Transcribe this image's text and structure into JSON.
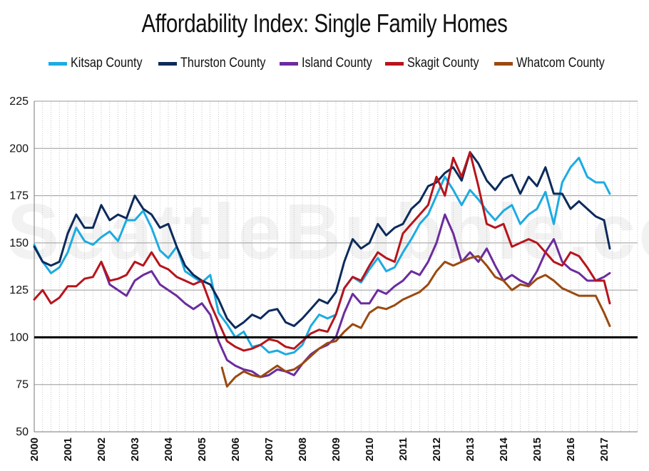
{
  "watermark": "SeattleBubble.com",
  "chart_data": {
    "type": "line",
    "title": "Affordability Index: Single Family Homes",
    "xlabel": "",
    "ylabel": "",
    "ylim": [
      50,
      225
    ],
    "xlim": [
      2000,
      2018
    ],
    "yticks": [
      50,
      75,
      100,
      125,
      150,
      175,
      200,
      225
    ],
    "xticks": [
      "2000",
      "2001",
      "2002",
      "2003",
      "2004",
      "2005",
      "2006",
      "2007",
      "2008",
      "2009",
      "2010",
      "2011",
      "2012",
      "2013",
      "2014",
      "2015",
      "2016",
      "2017"
    ],
    "reference_line": 100,
    "grid": true,
    "legend": "top",
    "series": [
      {
        "name": "Kitsap County",
        "color": "#1cabe2",
        "x": [
          2000,
          2000.25,
          2000.5,
          2000.75,
          2001,
          2001.25,
          2001.5,
          2001.75,
          2002,
          2002.25,
          2002.5,
          2002.75,
          2003,
          2003.25,
          2003.5,
          2003.75,
          2004,
          2004.25,
          2004.5,
          2004.75,
          2005,
          2005.25,
          2005.5,
          2005.75,
          2006,
          2006.25,
          2006.5,
          2006.75,
          2007,
          2007.25,
          2007.5,
          2007.75,
          2008,
          2008.25,
          2008.5,
          2008.75,
          2009,
          2009.25,
          2009.5,
          2009.75,
          2010,
          2010.25,
          2010.5,
          2010.75,
          2011,
          2011.25,
          2011.5,
          2011.75,
          2012,
          2012.25,
          2012.5,
          2012.75,
          2013,
          2013.25,
          2013.5,
          2013.75,
          2014,
          2014.25,
          2014.5,
          2014.75,
          2015,
          2015.25,
          2015.5,
          2015.75,
          2016,
          2016.25,
          2016.5,
          2016.75,
          2017,
          2017.17
        ],
        "y": [
          149,
          140,
          134,
          137,
          145,
          158,
          151,
          149,
          153,
          156,
          151,
          162,
          162,
          167,
          158,
          146,
          142,
          148,
          135,
          132,
          129,
          133,
          113,
          107,
          100,
          103,
          95,
          96,
          92,
          93,
          91,
          92,
          96,
          106,
          112,
          110,
          112,
          126,
          132,
          129,
          136,
          142,
          135,
          137,
          145,
          152,
          160,
          165,
          175,
          185,
          178,
          170,
          178,
          173,
          167,
          162,
          167,
          170,
          160,
          165,
          168,
          177,
          160,
          182,
          190,
          195,
          185,
          182,
          182,
          176
        ]
      },
      {
        "name": "Thurston County",
        "color": "#0c2a5b",
        "x": [
          2000,
          2000.25,
          2000.5,
          2000.75,
          2001,
          2001.25,
          2001.5,
          2001.75,
          2002,
          2002.25,
          2002.5,
          2002.75,
          2003,
          2003.25,
          2003.5,
          2003.75,
          2004,
          2004.25,
          2004.5,
          2004.75,
          2005,
          2005.25,
          2005.5,
          2005.75,
          2006,
          2006.25,
          2006.5,
          2006.75,
          2007,
          2007.25,
          2007.5,
          2007.75,
          2008,
          2008.25,
          2008.5,
          2008.75,
          2009,
          2009.25,
          2009.5,
          2009.75,
          2010,
          2010.25,
          2010.5,
          2010.75,
          2011,
          2011.25,
          2011.5,
          2011.75,
          2012,
          2012.25,
          2012.5,
          2012.75,
          2013,
          2013.25,
          2013.5,
          2013.75,
          2014,
          2014.25,
          2014.5,
          2014.75,
          2015,
          2015.25,
          2015.5,
          2015.75,
          2016,
          2016.25,
          2016.5,
          2016.75,
          2017,
          2017.17
        ],
        "y": [
          148,
          140,
          138,
          140,
          155,
          165,
          158,
          158,
          170,
          162,
          165,
          163,
          175,
          168,
          165,
          158,
          160,
          148,
          138,
          133,
          130,
          128,
          120,
          110,
          105,
          108,
          112,
          110,
          114,
          115,
          108,
          106,
          110,
          115,
          120,
          118,
          124,
          140,
          152,
          147,
          150,
          160,
          154,
          158,
          160,
          168,
          172,
          180,
          182,
          187,
          190,
          183,
          198,
          192,
          183,
          178,
          184,
          186,
          176,
          185,
          180,
          190,
          176,
          176,
          168,
          172,
          168,
          164,
          162,
          147
        ]
      },
      {
        "name": "Island County",
        "color": "#6b2c9e",
        "x": [
          2002,
          2002.25,
          2002.5,
          2002.75,
          2003,
          2003.25,
          2003.5,
          2003.75,
          2004,
          2004.25,
          2004.5,
          2004.75,
          2005,
          2005.25,
          2005.5,
          2005.75,
          2006,
          2006.25,
          2006.5,
          2006.75,
          2007,
          2007.25,
          2007.5,
          2007.75,
          2008,
          2008.25,
          2008.5,
          2008.75,
          2009,
          2009.25,
          2009.5,
          2009.75,
          2010,
          2010.25,
          2010.5,
          2010.75,
          2011,
          2011.25,
          2011.5,
          2011.75,
          2012,
          2012.25,
          2012.5,
          2012.75,
          2013,
          2013.25,
          2013.5,
          2013.75,
          2014,
          2014.25,
          2014.5,
          2014.75,
          2015,
          2015.25,
          2015.5,
          2015.75,
          2016,
          2016.25,
          2016.5,
          2016.75,
          2017,
          2017.17
        ],
        "y": [
          140,
          128,
          125,
          122,
          130,
          133,
          135,
          128,
          125,
          122,
          118,
          115,
          118,
          112,
          98,
          88,
          85,
          83,
          82,
          79,
          80,
          83,
          82,
          80,
          86,
          91,
          94,
          96,
          100,
          113,
          123,
          118,
          118,
          125,
          123,
          127,
          130,
          135,
          133,
          140,
          150,
          165,
          155,
          140,
          145,
          140,
          147,
          138,
          130,
          133,
          130,
          128,
          135,
          145,
          152,
          140,
          136,
          134,
          130,
          130,
          132,
          134
        ]
      },
      {
        "name": "Skagit County",
        "color": "#b7141c",
        "x": [
          2000,
          2000.25,
          2000.5,
          2000.75,
          2001,
          2001.25,
          2001.5,
          2001.75,
          2002,
          2002.25,
          2002.5,
          2002.75,
          2003,
          2003.25,
          2003.5,
          2003.75,
          2004,
          2004.25,
          2004.5,
          2004.75,
          2005,
          2005.25,
          2005.5,
          2005.75,
          2006,
          2006.25,
          2006.5,
          2006.75,
          2007,
          2007.25,
          2007.5,
          2007.75,
          2008,
          2008.25,
          2008.5,
          2008.75,
          2009,
          2009.25,
          2009.5,
          2009.75,
          2010,
          2010.25,
          2010.5,
          2010.75,
          2011,
          2011.25,
          2011.5,
          2011.75,
          2012,
          2012.25,
          2012.5,
          2012.75,
          2013,
          2013.25,
          2013.5,
          2013.75,
          2014,
          2014.25,
          2014.5,
          2014.75,
          2015,
          2015.25,
          2015.5,
          2015.75,
          2016,
          2016.25,
          2016.5,
          2016.75,
          2017,
          2017.17
        ],
        "y": [
          120,
          125,
          118,
          121,
          127,
          127,
          131,
          132,
          140,
          130,
          131,
          133,
          140,
          138,
          145,
          138,
          136,
          132,
          130,
          128,
          130,
          118,
          108,
          98,
          95,
          93,
          94,
          96,
          99,
          98,
          95,
          94,
          98,
          102,
          104,
          103,
          112,
          126,
          132,
          130,
          138,
          145,
          142,
          140,
          155,
          160,
          165,
          170,
          185,
          175,
          195,
          185,
          198,
          180,
          160,
          158,
          160,
          148,
          150,
          152,
          150,
          145,
          140,
          138,
          145,
          143,
          137,
          130,
          130,
          118
        ]
      },
      {
        "name": "Whatcom County",
        "color": "#9a4a10",
        "x": [
          2005.6,
          2005.75,
          2006,
          2006.25,
          2006.5,
          2006.75,
          2007,
          2007.25,
          2007.5,
          2007.75,
          2008,
          2008.25,
          2008.5,
          2008.75,
          2009,
          2009.25,
          2009.5,
          2009.75,
          2010,
          2010.25,
          2010.5,
          2010.75,
          2011,
          2011.25,
          2011.5,
          2011.75,
          2012,
          2012.25,
          2012.5,
          2012.75,
          2013,
          2013.25,
          2013.5,
          2013.75,
          2014,
          2014.25,
          2014.5,
          2014.75,
          2015,
          2015.25,
          2015.5,
          2015.75,
          2016,
          2016.25,
          2016.5,
          2016.75,
          2017,
          2017.17
        ],
        "y": [
          84,
          74,
          79,
          82,
          80,
          79,
          82,
          85,
          82,
          83,
          86,
          90,
          94,
          97,
          98,
          103,
          107,
          105,
          113,
          116,
          115,
          117,
          120,
          122,
          124,
          128,
          135,
          140,
          138,
          140,
          142,
          143,
          138,
          132,
          130,
          125,
          128,
          127,
          131,
          133,
          130,
          126,
          124,
          122,
          122,
          122,
          113,
          106
        ]
      }
    ]
  }
}
